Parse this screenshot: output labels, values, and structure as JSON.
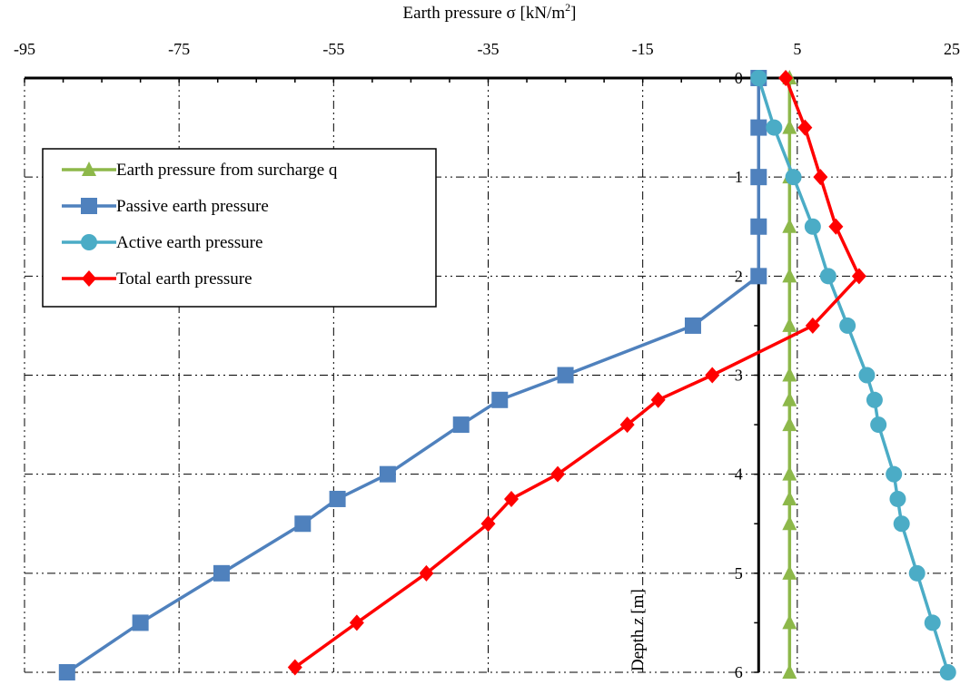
{
  "chart_data": {
    "type": "line",
    "xlabel": {
      "prefix": "Earth pressure σ [kN/m",
      "sup": "2",
      "suffix": "]"
    },
    "ylabel": {
      "prefix": "Depth ",
      "italic": "z",
      "suffix": " [m]"
    },
    "xlim": [
      -95,
      25
    ],
    "ylim": [
      0,
      6
    ],
    "x_ticks": [
      "-95",
      "-75",
      "-55",
      "-35",
      "-15",
      "5",
      "25"
    ],
    "y_ticks": [
      "0",
      "1",
      "2",
      "3",
      "4",
      "5",
      "6"
    ],
    "y_inverted": true,
    "grid": true,
    "legend_position": "upper-left",
    "series": [
      {
        "name": "Earth pressure from surcharge q",
        "color": "#8DB84A",
        "marker": "triangle",
        "points": [
          [
            4,
            0
          ],
          [
            4,
            0.5
          ],
          [
            4,
            1
          ],
          [
            4,
            1.5
          ],
          [
            4,
            2
          ],
          [
            4,
            2.5
          ],
          [
            4,
            3
          ],
          [
            4,
            3.25
          ],
          [
            4,
            3.5
          ],
          [
            4,
            4
          ],
          [
            4,
            4.25
          ],
          [
            4,
            4.5
          ],
          [
            4,
            5
          ],
          [
            4,
            5.5
          ],
          [
            4,
            6
          ]
        ]
      },
      {
        "name": "Passive earth pressure",
        "color": "#4F81BD",
        "marker": "square",
        "points": [
          [
            0,
            0
          ],
          [
            0,
            0.5
          ],
          [
            0,
            1
          ],
          [
            0,
            1.5
          ],
          [
            0,
            2
          ],
          [
            -8.5,
            2.5
          ],
          [
            -25,
            3
          ],
          [
            -33.5,
            3.25
          ],
          [
            -38.5,
            3.5
          ],
          [
            -48,
            4
          ],
          [
            -54.5,
            4.25
          ],
          [
            -59,
            4.5
          ],
          [
            -69.5,
            5
          ],
          [
            -80,
            5.5
          ],
          [
            -89.5,
            6
          ]
        ]
      },
      {
        "name": "Active earth pressure",
        "color": "#4BACC6",
        "marker": "circle",
        "points": [
          [
            0,
            0
          ],
          [
            2,
            0.5
          ],
          [
            4.5,
            1
          ],
          [
            7,
            1.5
          ],
          [
            9,
            2
          ],
          [
            11.5,
            2.5
          ],
          [
            14,
            3
          ],
          [
            15,
            3.25
          ],
          [
            15.5,
            3.5
          ],
          [
            17.5,
            4
          ],
          [
            18,
            4.25
          ],
          [
            18.5,
            4.5
          ],
          [
            20.5,
            5
          ],
          [
            22.5,
            5.5
          ],
          [
            24.5,
            6
          ]
        ]
      },
      {
        "name": "Total earth pressure",
        "color": "#FF0000",
        "marker": "diamond",
        "points": [
          [
            3.5,
            0
          ],
          [
            6,
            0.5
          ],
          [
            8,
            1
          ],
          [
            10,
            1.5
          ],
          [
            13,
            2
          ],
          [
            7,
            2.5
          ],
          [
            -6,
            3
          ],
          [
            -13,
            3.25
          ],
          [
            -17,
            3.5
          ],
          [
            -26,
            4
          ],
          [
            -32,
            4.25
          ],
          [
            -35,
            4.5
          ],
          [
            -43,
            5
          ],
          [
            -52,
            5.5
          ],
          [
            -60,
            5.95
          ]
        ]
      }
    ]
  }
}
